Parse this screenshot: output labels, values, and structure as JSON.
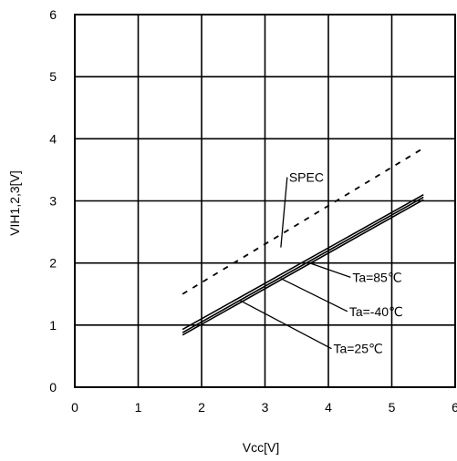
{
  "chart_data": {
    "type": "line",
    "xlabel": "Vcc[V]",
    "ylabel": "VIH1,2,3[V]",
    "xlim": [
      0,
      6
    ],
    "ylim": [
      0,
      6
    ],
    "x_ticks": [
      "0",
      "1",
      "2",
      "3",
      "4",
      "5",
      "6"
    ],
    "y_ticks": [
      "0",
      "1",
      "2",
      "3",
      "4",
      "5",
      "6"
    ],
    "grid": true,
    "series": [
      {
        "name": "SPEC",
        "style": "dashed",
        "color": "#000000",
        "x": [
          1.7,
          5.5
        ],
        "y": [
          1.5,
          3.85
        ]
      },
      {
        "name": "Ta=85℃",
        "style": "solid",
        "color": "#000000",
        "x": [
          1.7,
          5.5
        ],
        "y": [
          0.93,
          3.1
        ]
      },
      {
        "name": "Ta=-40℃",
        "style": "solid",
        "color": "#000000",
        "x": [
          1.7,
          5.5
        ],
        "y": [
          0.88,
          3.06
        ]
      },
      {
        "name": "Ta=25℃",
        "style": "solid",
        "color": "#000000",
        "x": [
          1.7,
          5.5
        ],
        "y": [
          0.84,
          3.02
        ]
      }
    ],
    "annotations": [
      {
        "text": "SPEC",
        "label_x": 3.35,
        "label_y": 3.38,
        "point_x": 3.25,
        "point_y": 2.25
      },
      {
        "text": "Ta=85℃",
        "label_x": 4.35,
        "label_y": 1.77,
        "point_x": 3.7,
        "point_y": 2.0
      },
      {
        "text": "Ta=-40℃",
        "label_x": 4.3,
        "label_y": 1.22,
        "point_x": 3.25,
        "point_y": 1.75
      },
      {
        "text": "Ta=25℃",
        "label_x": 4.05,
        "label_y": 0.62,
        "point_x": 2.6,
        "point_y": 1.4
      }
    ]
  }
}
